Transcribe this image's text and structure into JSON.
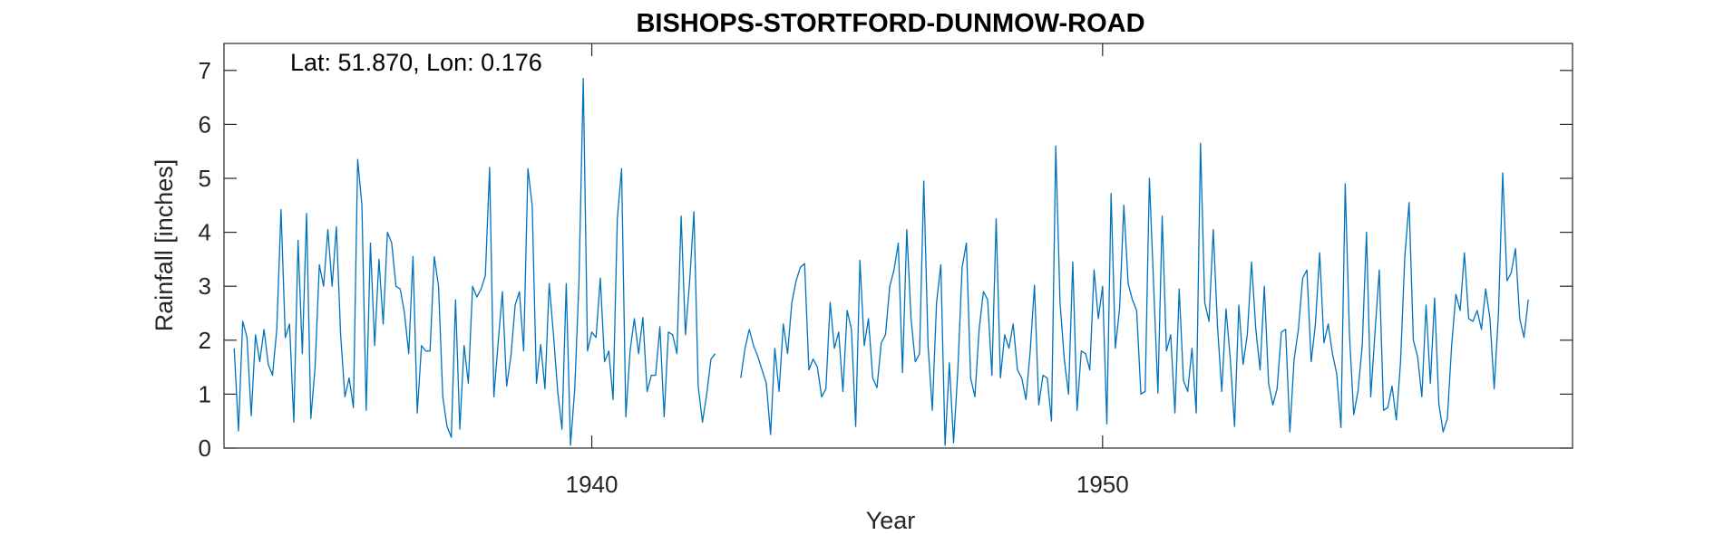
{
  "chart_data": {
    "type": "line",
    "title": "BISHOPS-STORTFORD-DUNMOW-ROAD",
    "annotation": "Lat: 51.870, Lon: 0.176",
    "xlabel": "Year",
    "ylabel": "Rainfall [inches]",
    "xlim": [
      1932.8,
      1959.2
    ],
    "ylim": [
      0,
      7.5
    ],
    "xticks": [
      1940,
      1950
    ],
    "xtick_labels": [
      "1940",
      "1950"
    ],
    "yticks": [
      0,
      1,
      2,
      3,
      4,
      5,
      6,
      7
    ],
    "ytick_labels": [
      "0",
      "1",
      "2",
      "3",
      "4",
      "5",
      "6",
      "7"
    ],
    "grid": false,
    "line_color": "#0072BD",
    "start": "1933-01",
    "frequency": "monthly",
    "series": [
      {
        "values": [
          1.85,
          0.32,
          2.35,
          2.05,
          0.6,
          2.1,
          1.6,
          2.2,
          1.55,
          1.35,
          2.2,
          4.42,
          2.05,
          2.3,
          0.48,
          3.85,
          1.75,
          4.35,
          0.55,
          1.5,
          3.4,
          3.0,
          4.05,
          3.0,
          4.1,
          2.1,
          0.95,
          1.3,
          0.75,
          5.35,
          4.5,
          0.7,
          3.8,
          1.9,
          3.5,
          2.3,
          4.0,
          3.8,
          3.0,
          2.95,
          2.5,
          1.75,
          3.55,
          0.65,
          1.9,
          1.8,
          1.8,
          3.55,
          3.0,
          0.95,
          0.4,
          0.2,
          2.75,
          0.35,
          1.9,
          1.2,
          3.0,
          2.8,
          2.95,
          3.2,
          5.2,
          0.95,
          1.95,
          2.9,
          1.15,
          1.7,
          2.65,
          2.9,
          1.8,
          5.18,
          4.5,
          1.2,
          1.92,
          1.1,
          3.05,
          2.1,
          1.05,
          0.35,
          3.05,
          0.05,
          1.1,
          3.1,
          6.85,
          1.8,
          2.15,
          2.05,
          3.15,
          1.6,
          1.8,
          0.9,
          4.25,
          5.18,
          0.58,
          1.8,
          2.4,
          1.75,
          2.42,
          1.05,
          1.35,
          1.35,
          2.25,
          0.58,
          2.15,
          2.1,
          1.75,
          4.3,
          2.1,
          3.1,
          4.38,
          1.15,
          0.48,
          1.0,
          1.65,
          1.75,
          null,
          null,
          null,
          null,
          null,
          1.3,
          1.85,
          2.2,
          1.9,
          1.7,
          1.45,
          1.2,
          0.25,
          1.85,
          1.05,
          2.3,
          1.75,
          2.7,
          3.1,
          3.35,
          3.42,
          1.45,
          1.65,
          1.5,
          0.95,
          1.1,
          2.7,
          1.85,
          2.15,
          1.05,
          2.55,
          2.2,
          0.4,
          3.48,
          1.9,
          2.4,
          1.3,
          1.12,
          1.95,
          2.1,
          3.0,
          3.3,
          3.8,
          1.4,
          4.05,
          2.4,
          1.6,
          1.75,
          4.95,
          1.9,
          0.7,
          2.7,
          3.4,
          0.05,
          1.58,
          0.1,
          1.45,
          3.35,
          3.8,
          1.3,
          0.95,
          2.2,
          2.9,
          2.75,
          1.35,
          4.25,
          1.3,
          2.1,
          1.85,
          2.3,
          1.45,
          1.3,
          0.9,
          1.8,
          3.02,
          0.8,
          1.35,
          1.3,
          0.5,
          5.6,
          2.7,
          1.65,
          1.0,
          3.45,
          0.7,
          1.8,
          1.75,
          1.45,
          3.3,
          2.4,
          3.0,
          0.45,
          4.72,
          1.85,
          2.6,
          4.5,
          3.05,
          2.75,
          2.55,
          1.0,
          1.05,
          5.0,
          3.0,
          1.02,
          4.3,
          1.8,
          2.1,
          0.65,
          2.95,
          1.25,
          1.05,
          1.85,
          0.65,
          5.65,
          2.7,
          2.35,
          4.05,
          2.25,
          1.05,
          2.58,
          1.65,
          0.4,
          2.65,
          1.55,
          2.1,
          3.45,
          2.2,
          1.45,
          3.0,
          1.2,
          0.8,
          1.1,
          2.15,
          2.2,
          0.3,
          1.65,
          2.2,
          3.15,
          3.3,
          1.6,
          2.3,
          3.62,
          1.95,
          2.3,
          1.75,
          1.38,
          0.38,
          4.9,
          2.1,
          0.62,
          1.05,
          1.9,
          4.0,
          0.95,
          2.15,
          3.3,
          0.7,
          0.75,
          1.15,
          0.52,
          1.6,
          3.55,
          4.55,
          2.0,
          1.7,
          0.95,
          2.65,
          1.2,
          2.78,
          0.82,
          0.3,
          0.55,
          1.9,
          2.85,
          2.55,
          3.62,
          2.4,
          2.35,
          2.55,
          2.2,
          2.95,
          2.4,
          1.1,
          2.5,
          5.1,
          3.1,
          3.25,
          3.7,
          2.4,
          2.05,
          2.75
        ]
      }
    ]
  }
}
